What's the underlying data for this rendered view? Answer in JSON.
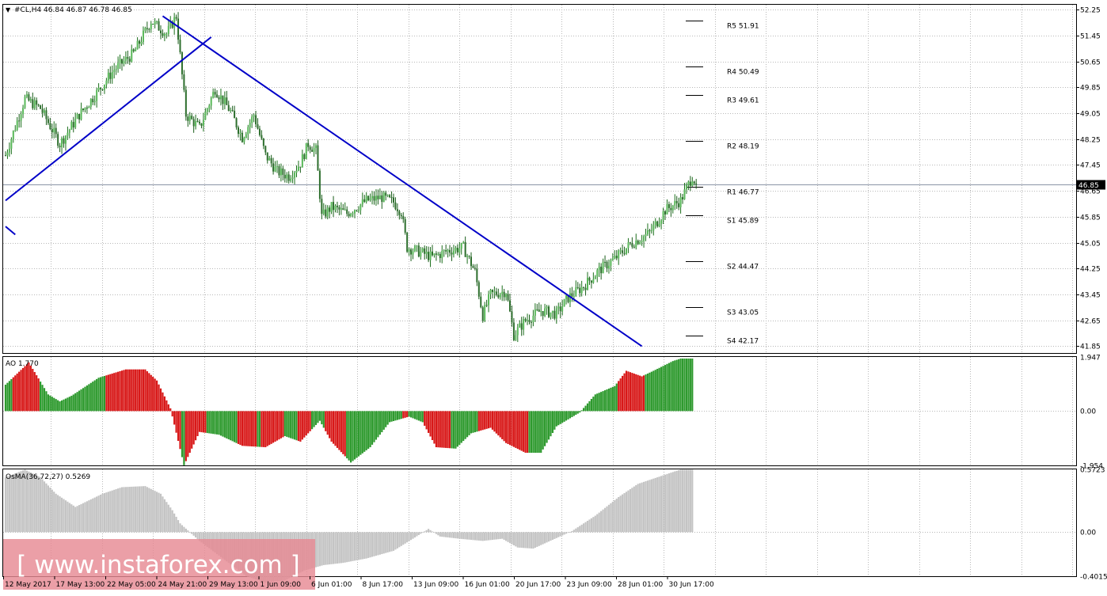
{
  "header": {
    "menu_glyph": "▼",
    "info": "#CL,H4  46.84 46.87 46.78 46.85"
  },
  "colors": {
    "bull": "#2e9a2e",
    "bear": "#d81818",
    "wick": "#1b6e1b",
    "trend": "#0000c8",
    "grid": "#b8b8b8",
    "osma": "#c4c4c4",
    "pivot": "#000000"
  },
  "watermark": {
    "text": "[ www.instaforex.com ]"
  },
  "chart_data": [
    {
      "type": "candlestick",
      "symbol": "#CL,H4",
      "ohlc_last": [
        46.84,
        46.87,
        46.78,
        46.85
      ],
      "ylim": [
        41.64,
        52.4
      ],
      "yticks": [
        "52.25",
        "51.45",
        "50.65",
        "49.85",
        "49.05",
        "48.25",
        "47.45",
        "46.65",
        "45.85",
        "45.05",
        "44.25",
        "43.45",
        "42.65",
        "41.85"
      ],
      "current_price": "46.85",
      "x_labels": [
        "12 May 2017",
        "17 May 13:00",
        "22 May 05:00",
        "24 May 21:00",
        "29 May 13:00",
        "1 Jun 09:00",
        "6 Jun 01:00",
        "8 Jun 17:00",
        "13 Jun 09:00",
        "16 Jun 01:00",
        "20 Jun 17:00",
        "23 Jun 09:00",
        "28 Jun 01:00",
        "30 Jun 17:00"
      ],
      "pivots": [
        {
          "label": "R5",
          "value": "51.91"
        },
        {
          "label": "R4",
          "value": "50.49"
        },
        {
          "label": "R3",
          "value": "49.61"
        },
        {
          "label": "R2",
          "value": "48.19"
        },
        {
          "label": "R1",
          "value": "46.77"
        },
        {
          "label": "S1",
          "value": "45.89"
        },
        {
          "label": "S2",
          "value": "44.47"
        },
        {
          "label": "S3",
          "value": "43.05"
        },
        {
          "label": "S4",
          "value": "42.17"
        }
      ],
      "path_points": [
        [
          0,
          47.75
        ],
        [
          10,
          49.5
        ],
        [
          18,
          49.2
        ],
        [
          28,
          48.1
        ],
        [
          38,
          49.0
        ],
        [
          46,
          49.6
        ],
        [
          56,
          50.4
        ],
        [
          66,
          50.9
        ],
        [
          75,
          51.9
        ],
        [
          83,
          51.5
        ],
        [
          88,
          52.05
        ],
        [
          93,
          49.0
        ],
        [
          100,
          48.6
        ],
        [
          108,
          49.8
        ],
        [
          116,
          49.1
        ],
        [
          122,
          48.3
        ],
        [
          128,
          49.0
        ],
        [
          134,
          47.75
        ],
        [
          140,
          47.25
        ],
        [
          146,
          47.1
        ],
        [
          152,
          47.5
        ],
        [
          156,
          48.1
        ],
        [
          160,
          47.9
        ],
        [
          163,
          45.85
        ],
        [
          168,
          46.15
        ],
        [
          176,
          45.95
        ],
        [
          186,
          46.35
        ],
        [
          194,
          46.45
        ],
        [
          200,
          46.3
        ],
        [
          204,
          46.0
        ],
        [
          207,
          44.9
        ],
        [
          214,
          44.75
        ],
        [
          220,
          44.6
        ],
        [
          228,
          44.8
        ],
        [
          236,
          44.9
        ],
        [
          242,
          44.15
        ],
        [
          246,
          42.8
        ],
        [
          250,
          43.45
        ],
        [
          258,
          43.55
        ],
        [
          262,
          42.2
        ],
        [
          268,
          42.65
        ],
        [
          276,
          42.95
        ],
        [
          284,
          42.85
        ],
        [
          290,
          43.35
        ],
        [
          298,
          43.7
        ],
        [
          306,
          44.2
        ],
        [
          314,
          44.55
        ],
        [
          322,
          45.0
        ],
        [
          332,
          45.35
        ],
        [
          340,
          46.05
        ],
        [
          348,
          46.35
        ],
        [
          354,
          47.1
        ],
        [
          356,
          46.85
        ]
      ],
      "trendlines": [
        {
          "from": [
            0,
            46.35
          ],
          "to": [
            106,
            51.4
          ]
        },
        {
          "from": [
            81,
            52.05
          ],
          "to": [
            328,
            41.85
          ]
        },
        {
          "from": [
            0,
            45.55
          ],
          "to": [
            5,
            45.3
          ]
        }
      ]
    },
    {
      "type": "histogram",
      "name": "AO",
      "title": "AO 1.770",
      "value": 1.77,
      "ylim": [
        -1.954,
        1.947
      ],
      "yticks": [
        "1.947",
        "0.00",
        "-1.954"
      ],
      "envelope": [
        [
          0,
          0.95
        ],
        [
          12,
          1.75
        ],
        [
          22,
          0.6
        ],
        [
          28,
          0.35
        ],
        [
          34,
          0.55
        ],
        [
          48,
          1.2
        ],
        [
          62,
          1.5
        ],
        [
          72,
          1.5
        ],
        [
          78,
          1.1
        ],
        [
          85,
          0.1
        ],
        [
          92,
          -1.95
        ],
        [
          100,
          -0.75
        ],
        [
          110,
          -0.85
        ],
        [
          122,
          -1.25
        ],
        [
          134,
          -1.3
        ],
        [
          144,
          -0.9
        ],
        [
          152,
          -1.1
        ],
        [
          162,
          -0.35
        ],
        [
          168,
          -1.1
        ],
        [
          178,
          -1.85
        ],
        [
          188,
          -1.3
        ],
        [
          198,
          -0.4
        ],
        [
          208,
          -0.2
        ],
        [
          215,
          -0.4
        ],
        [
          222,
          -1.3
        ],
        [
          232,
          -1.35
        ],
        [
          240,
          -0.8
        ],
        [
          250,
          -0.6
        ],
        [
          258,
          -1.15
        ],
        [
          268,
          -1.5
        ],
        [
          276,
          -1.5
        ],
        [
          284,
          -0.55
        ],
        [
          296,
          -0.05
        ],
        [
          304,
          0.6
        ],
        [
          314,
          0.9
        ],
        [
          320,
          1.45
        ],
        [
          328,
          1.25
        ],
        [
          334,
          1.45
        ],
        [
          344,
          1.8
        ],
        [
          348,
          1.89
        ]
      ],
      "colors_by_index": [
        [
          0,
          "bull"
        ],
        [
          4,
          "bear"
        ],
        [
          18,
          "bull"
        ],
        [
          24,
          "bull"
        ],
        [
          35,
          "bull"
        ],
        [
          52,
          "bear"
        ],
        [
          84,
          "bear"
        ],
        [
          91,
          "bull"
        ],
        [
          93,
          "bear"
        ],
        [
          104,
          "bull"
        ],
        [
          120,
          "bear"
        ],
        [
          130,
          "bull"
        ],
        [
          132,
          "bear"
        ],
        [
          144,
          "bull"
        ],
        [
          151,
          "bear"
        ],
        [
          158,
          "bull"
        ],
        [
          165,
          "bear"
        ],
        [
          176,
          "bull"
        ],
        [
          198,
          "bull"
        ],
        [
          205,
          "bear"
        ],
        [
          208,
          "bull"
        ],
        [
          216,
          "bear"
        ],
        [
          230,
          "bull"
        ],
        [
          244,
          "bear"
        ],
        [
          262,
          "bear"
        ],
        [
          270,
          "bull"
        ],
        [
          286,
          "bull"
        ],
        [
          302,
          "bull"
        ],
        [
          316,
          "bear"
        ],
        [
          330,
          "bull"
        ]
      ]
    },
    {
      "type": "histogram",
      "name": "OsMA",
      "title": "OsMA(36,72,27) 0.5269",
      "value": 0.5269,
      "ylim": [
        -0.4015,
        0.5723
      ],
      "yticks": [
        "0.5723",
        "0.00",
        "-0.4015"
      ],
      "envelope": [
        [
          0,
          0.5
        ],
        [
          10,
          0.57
        ],
        [
          18,
          0.5
        ],
        [
          26,
          0.35
        ],
        [
          36,
          0.23
        ],
        [
          50,
          0.35
        ],
        [
          60,
          0.41
        ],
        [
          72,
          0.42
        ],
        [
          80,
          0.35
        ],
        [
          86,
          0.2
        ],
        [
          90,
          0.08
        ],
        [
          100,
          -0.08
        ],
        [
          112,
          -0.24
        ],
        [
          124,
          -0.4
        ],
        [
          134,
          -0.46
        ],
        [
          144,
          -0.44
        ],
        [
          154,
          -0.35
        ],
        [
          164,
          -0.3
        ],
        [
          174,
          -0.28
        ],
        [
          186,
          -0.24
        ],
        [
          200,
          -0.17
        ],
        [
          210,
          -0.06
        ],
        [
          218,
          0.03
        ],
        [
          224,
          -0.04
        ],
        [
          234,
          -0.06
        ],
        [
          246,
          -0.08
        ],
        [
          256,
          -0.06
        ],
        [
          264,
          -0.14
        ],
        [
          272,
          -0.15
        ],
        [
          282,
          -0.07
        ],
        [
          292,
          0.01
        ],
        [
          304,
          0.15
        ],
        [
          316,
          0.32
        ],
        [
          326,
          0.44
        ],
        [
          336,
          0.5
        ],
        [
          346,
          0.56
        ],
        [
          348,
          0.57
        ]
      ]
    }
  ]
}
